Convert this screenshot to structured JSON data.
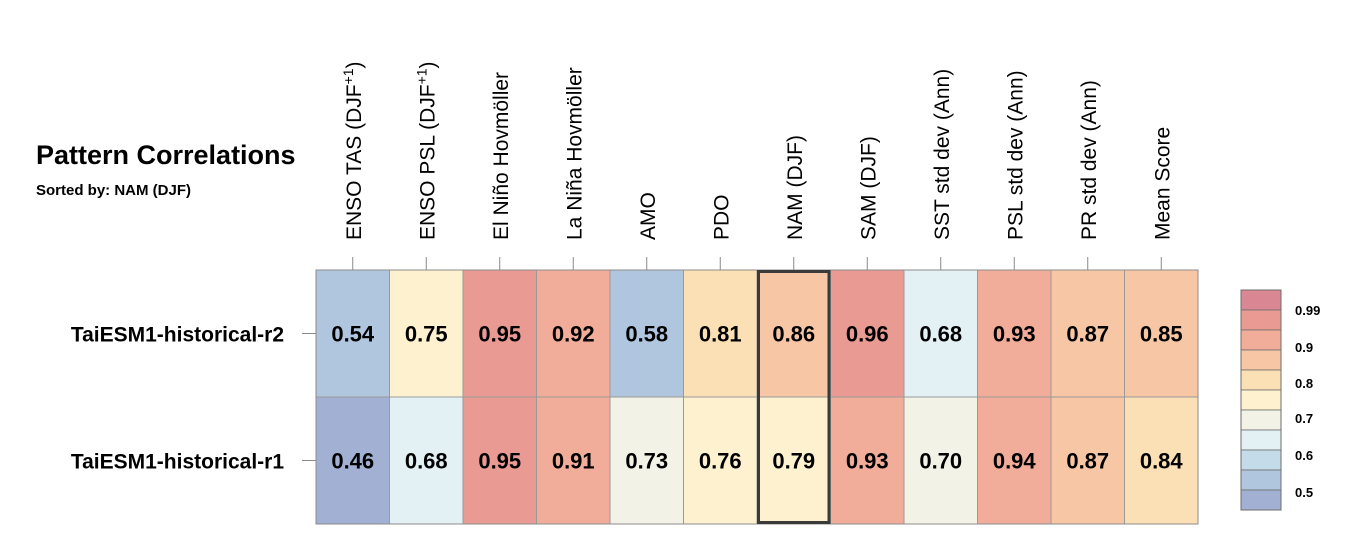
{
  "chart_data": {
    "type": "heatmap",
    "title": "Pattern Correlations",
    "subtitle": "Sorted by: NAM (DJF)",
    "columns": [
      "ENSO TAS (DJF+1)",
      "ENSO PSL (DJF+1)",
      "El Niño Hovmöller",
      "La Niña Hovmöller",
      "AMO",
      "PDO",
      "NAM (DJF)",
      "SAM (DJF)",
      "SST std dev (Ann)",
      "PSL std dev (Ann)",
      "PR std dev (Ann)",
      "Mean Score"
    ],
    "rows": [
      "TaiESM1-historical-r2",
      "TaiESM1-historical-r1"
    ],
    "values": [
      [
        0.54,
        0.75,
        0.95,
        0.92,
        0.58,
        0.81,
        0.86,
        0.96,
        0.68,
        0.93,
        0.87,
        0.85
      ],
      [
        0.46,
        0.68,
        0.95,
        0.91,
        0.73,
        0.76,
        0.79,
        0.93,
        0.7,
        0.94,
        0.87,
        0.84
      ]
    ],
    "highlighted_column": "NAM (DJF)",
    "colorbar": {
      "labels": [
        "0.99",
        "0.9",
        "0.8",
        "0.7",
        "0.6",
        "0.5"
      ],
      "colors": [
        "#d98792",
        "#e99a93",
        "#f2ad9a",
        "#f7c6a5",
        "#fce0b5",
        "#fdf1cf",
        "#f3f2e7",
        "#e3f1f5",
        "#c4dcea",
        "#b0c6df",
        "#a1b0d3"
      ]
    }
  }
}
